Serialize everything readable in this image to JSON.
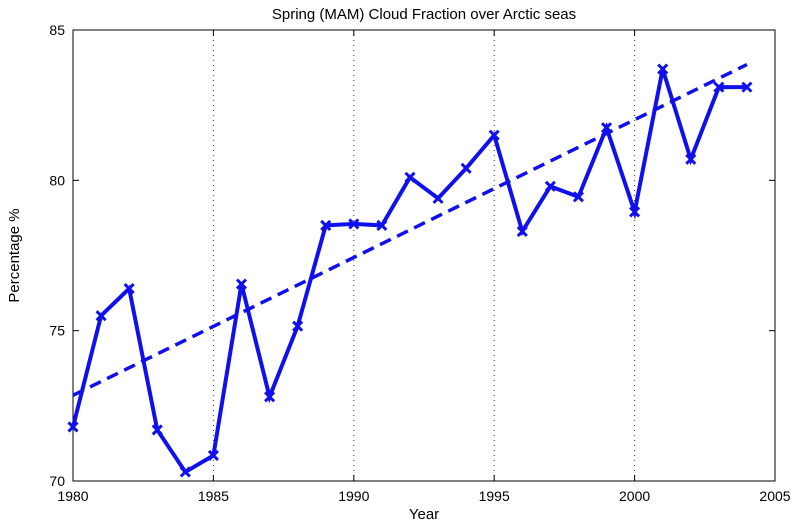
{
  "chart_data": {
    "type": "line",
    "title": "Spring (MAM) Cloud Fraction over Arctic seas",
    "xlabel": "Year",
    "ylabel": "Percentage %",
    "xlim": [
      1980,
      2005
    ],
    "ylim": [
      70,
      85
    ],
    "xticks": [
      1980,
      1985,
      1990,
      1995,
      2000,
      2005
    ],
    "yticks": [
      70,
      75,
      80,
      85
    ],
    "grid": "x-dotted",
    "line_color": "#1010ee",
    "series": [
      {
        "style": "solid with x markers",
        "x": [
          1980,
          1981,
          1982,
          1983,
          1984,
          1985,
          1986,
          1987,
          1988,
          1989,
          1990,
          1991,
          1992,
          1993,
          1994,
          1995,
          1996,
          1997,
          1998,
          1999,
          2000,
          2001,
          2002,
          2003,
          2004
        ],
        "values": [
          71.8,
          75.5,
          76.4,
          71.7,
          70.3,
          70.85,
          76.55,
          72.8,
          75.15,
          78.5,
          78.55,
          78.5,
          80.1,
          79.4,
          80.4,
          81.5,
          78.3,
          79.8,
          79.45,
          81.75,
          78.95,
          83.7,
          80.7,
          83.1,
          83.1
        ]
      },
      {
        "style": "dashed linear trend",
        "x": [
          1980,
          2004
        ],
        "values": [
          72.85,
          83.85
        ]
      }
    ]
  }
}
